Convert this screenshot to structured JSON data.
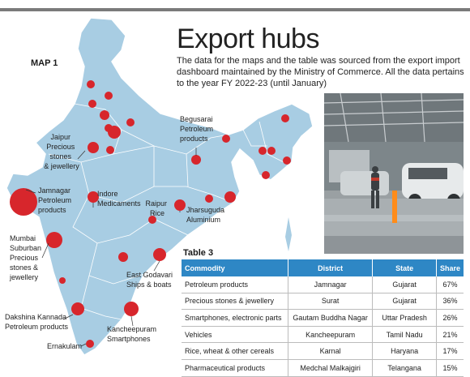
{
  "header": {
    "title": "Export hubs",
    "description": "The data for the maps and the table was sourced from the export import dashboard maintained by the Ministry of Commerce. All the data pertains to the year FY 2022-23 (until January)"
  },
  "map": {
    "label": "MAP 1",
    "land_color": "#a8cde3",
    "dot_color": "#d7262c",
    "annotations": {
      "jaipur": [
        "Jaipur",
        "Precious",
        "stones",
        "& jewellery"
      ],
      "begusarai": [
        "Begusarai",
        "Petroleum",
        "products"
      ],
      "jamnagar": [
        "Jamnagar",
        "Petroleum",
        "products"
      ],
      "indore": [
        "Indore",
        "Medicaments"
      ],
      "raipur": [
        "Raipur",
        "Rice"
      ],
      "jharsuguda": [
        "Jharsuguda",
        "Aluminium"
      ],
      "mumbai": [
        "Mumbai",
        "Suburban",
        "Precious",
        "stones &",
        "jewellery"
      ],
      "east_godavari": [
        "East Godavari",
        "Ships & boats"
      ],
      "dakshina": [
        "Dakshina Kannada",
        "Petroleum products"
      ],
      "kancheepuram": [
        "Kancheepuram",
        "Smartphones"
      ],
      "ernakulam": [
        "Ernakulam"
      ]
    }
  },
  "table": {
    "label": "Table 3",
    "header_color": "#2e87c5",
    "columns": [
      "Commodity",
      "District",
      "State",
      "Share"
    ],
    "rows": [
      [
        "Petroleum products",
        "Jamnagar",
        "Gujarat",
        "67%"
      ],
      [
        "Precious stones & jewellery",
        "Surat",
        "Gujarat",
        "36%"
      ],
      [
        "Smartphones, electronic parts",
        "Gautam Buddha Nagar",
        "Uttar Pradesh",
        "26%"
      ],
      [
        "Vehicles",
        "Kancheepuram",
        "Tamil Nadu",
        "21%"
      ],
      [
        "Rice, wheat & other cereals",
        "Karnal",
        "Haryana",
        "17%"
      ],
      [
        "Pharmaceutical products",
        "Medchal Malkajgiri",
        "Telangana",
        "15%"
      ]
    ]
  }
}
